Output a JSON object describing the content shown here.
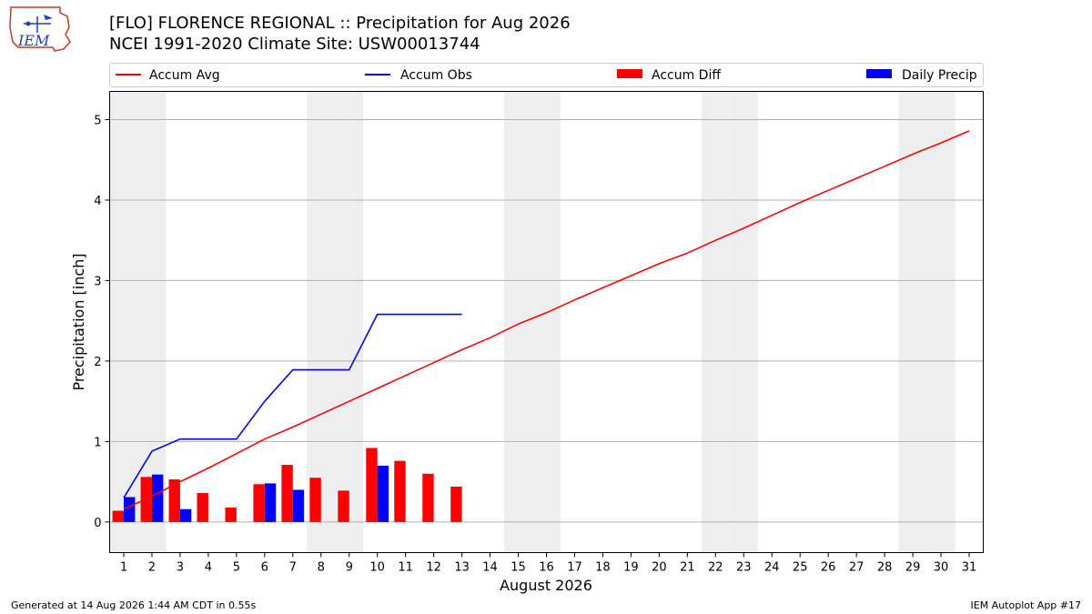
{
  "logo_text": "IEM",
  "chart_data": {
    "type": "bar",
    "title": "[FLO] FLORENCE REGIONAL :: Precipitation for Aug 2026",
    "subtitle": "NCEI 1991-2020 Climate Site: USW00013744",
    "xlabel": "August 2026",
    "ylabel": "Precipitation [inch]",
    "x": [
      1,
      2,
      3,
      4,
      5,
      6,
      7,
      8,
      9,
      10,
      11,
      12,
      13,
      14,
      15,
      16,
      17,
      18,
      19,
      20,
      21,
      22,
      23,
      24,
      25,
      26,
      27,
      28,
      29,
      30,
      31
    ],
    "x_tick_labels": [
      "1",
      "2",
      "3",
      "4",
      "5",
      "6",
      "7",
      "8",
      "9",
      "10",
      "11",
      "12",
      "13",
      "14",
      "15",
      "16",
      "17",
      "18",
      "19",
      "20",
      "21",
      "22",
      "23",
      "24",
      "25",
      "26",
      "27",
      "28",
      "29",
      "30",
      "31"
    ],
    "xlim": [
      0.5,
      31.5
    ],
    "ylim": [
      -0.38,
      5.35
    ],
    "y_ticks": [
      0,
      1,
      2,
      3,
      4,
      5
    ],
    "y_tick_labels": [
      "0",
      "1",
      "2",
      "3",
      "4",
      "5"
    ],
    "grid": "horizontal",
    "legend_placement": "top, above plot",
    "weekend_shading_days": [
      1,
      2,
      8,
      9,
      15,
      16,
      22,
      23,
      29,
      30
    ],
    "series": [
      {
        "name": "Accum Avg",
        "kind": "line",
        "color": "#ff0000",
        "x": [
          1,
          2,
          3,
          4,
          5,
          6,
          7,
          8,
          9,
          10,
          11,
          12,
          13,
          14,
          15,
          16,
          17,
          18,
          19,
          20,
          21,
          22,
          23,
          24,
          25,
          26,
          27,
          28,
          29,
          30,
          31
        ],
        "values": [
          0.16,
          0.32,
          0.5,
          0.67,
          0.85,
          1.03,
          1.18,
          1.34,
          1.5,
          1.66,
          1.82,
          1.98,
          2.14,
          2.29,
          2.46,
          2.6,
          2.76,
          2.91,
          3.06,
          3.21,
          3.34,
          3.5,
          3.65,
          3.81,
          3.97,
          4.12,
          4.27,
          4.42,
          4.57,
          4.71,
          4.86
        ]
      },
      {
        "name": "Accum Obs",
        "kind": "line",
        "color": "#0000ff",
        "x": [
          1,
          2,
          3,
          4,
          5,
          6,
          7,
          8,
          9,
          10,
          11,
          12,
          13
        ],
        "values": [
          0.3,
          0.88,
          1.03,
          1.03,
          1.03,
          1.5,
          1.89,
          1.89,
          1.89,
          2.58,
          2.58,
          2.58,
          2.58
        ]
      },
      {
        "name": "Accum Diff",
        "kind": "bar",
        "color": "#ff0000",
        "x": [
          1,
          2,
          3,
          4,
          5,
          6,
          7,
          8,
          9,
          10,
          11,
          12,
          13
        ],
        "values": [
          0.14,
          0.56,
          0.53,
          0.36,
          0.18,
          0.47,
          0.71,
          0.55,
          0.39,
          0.92,
          0.76,
          0.6,
          0.44
        ]
      },
      {
        "name": "Daily Precip",
        "kind": "bar",
        "color": "#0000ff",
        "x": [
          1,
          2,
          3,
          6,
          7,
          10
        ],
        "values": [
          0.31,
          0.59,
          0.16,
          0.48,
          0.4,
          0.7
        ]
      }
    ]
  },
  "footer": {
    "generated": "Generated at 14 Aug 2026 1:44 AM CDT in 0.55s",
    "app": "IEM Autoplot App #17"
  }
}
